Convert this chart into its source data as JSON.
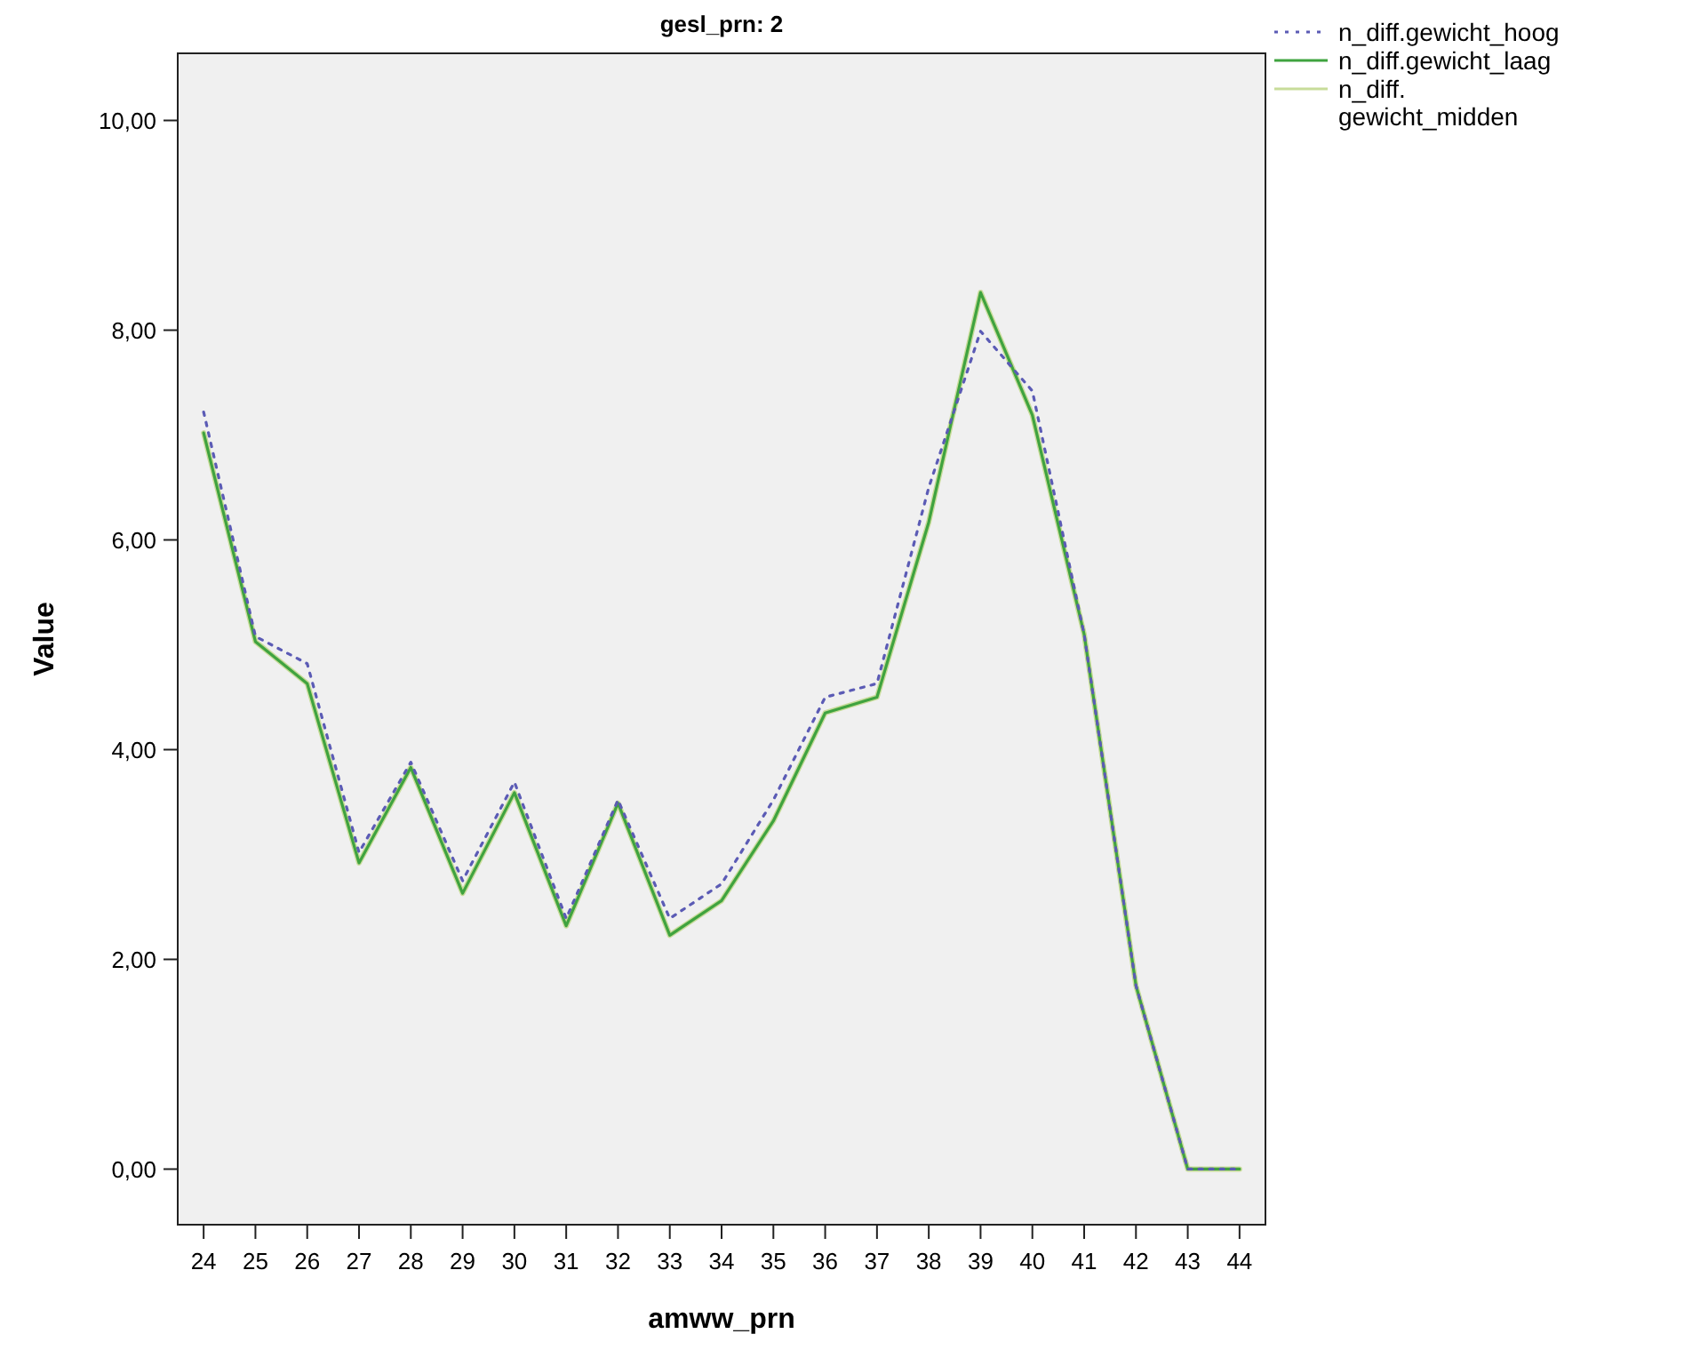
{
  "chart_data": {
    "type": "line",
    "title": "gesl_prn: 2",
    "xlabel": "amww_prn",
    "ylabel": "Value",
    "categories": [
      "24",
      "25",
      "26",
      "27",
      "28",
      "29",
      "30",
      "31",
      "32",
      "33",
      "34",
      "35",
      "36",
      "37",
      "38",
      "39",
      "40",
      "41",
      "42",
      "43",
      "44"
    ],
    "ylim": [
      -0.53,
      10.64
    ],
    "yticks": [
      {
        "value": 0,
        "label": "0,00"
      },
      {
        "value": 2,
        "label": "2,00"
      },
      {
        "value": 4,
        "label": "4,00"
      },
      {
        "value": 6,
        "label": "6,00"
      },
      {
        "value": 8,
        "label": "8,00"
      },
      {
        "value": 10,
        "label": "10,00"
      }
    ],
    "grid": false,
    "legend": "top right",
    "series": [
      {
        "name": "n_diff.gewicht_hoog",
        "color": "#5b5bb5",
        "line_style": "dotted",
        "values": [
          7.22,
          5.08,
          4.82,
          3.02,
          3.88,
          2.75,
          3.69,
          2.39,
          3.52,
          2.39,
          2.72,
          3.52,
          4.5,
          4.63,
          6.5,
          7.99,
          7.42,
          5.1,
          1.75,
          0,
          0
        ]
      },
      {
        "name": "n_diff.gewicht_laag",
        "color": "#3fa33f",
        "line_style": "solid",
        "values": [
          7.02,
          5.03,
          4.63,
          2.92,
          3.83,
          2.63,
          3.59,
          2.32,
          3.49,
          2.23,
          2.56,
          3.32,
          4.35,
          4.5,
          6.17,
          8.36,
          7.19,
          5.1,
          1.75,
          0,
          0
        ]
      },
      {
        "name": "n_diff.gewicht_midden",
        "color": "#c8dc9a",
        "line_style": "solid",
        "values": [
          7.02,
          5.03,
          4.63,
          2.92,
          3.83,
          2.63,
          3.59,
          2.32,
          3.49,
          2.23,
          2.56,
          3.32,
          4.35,
          4.5,
          6.17,
          8.36,
          7.19,
          5.1,
          1.75,
          0,
          0
        ]
      }
    ]
  }
}
